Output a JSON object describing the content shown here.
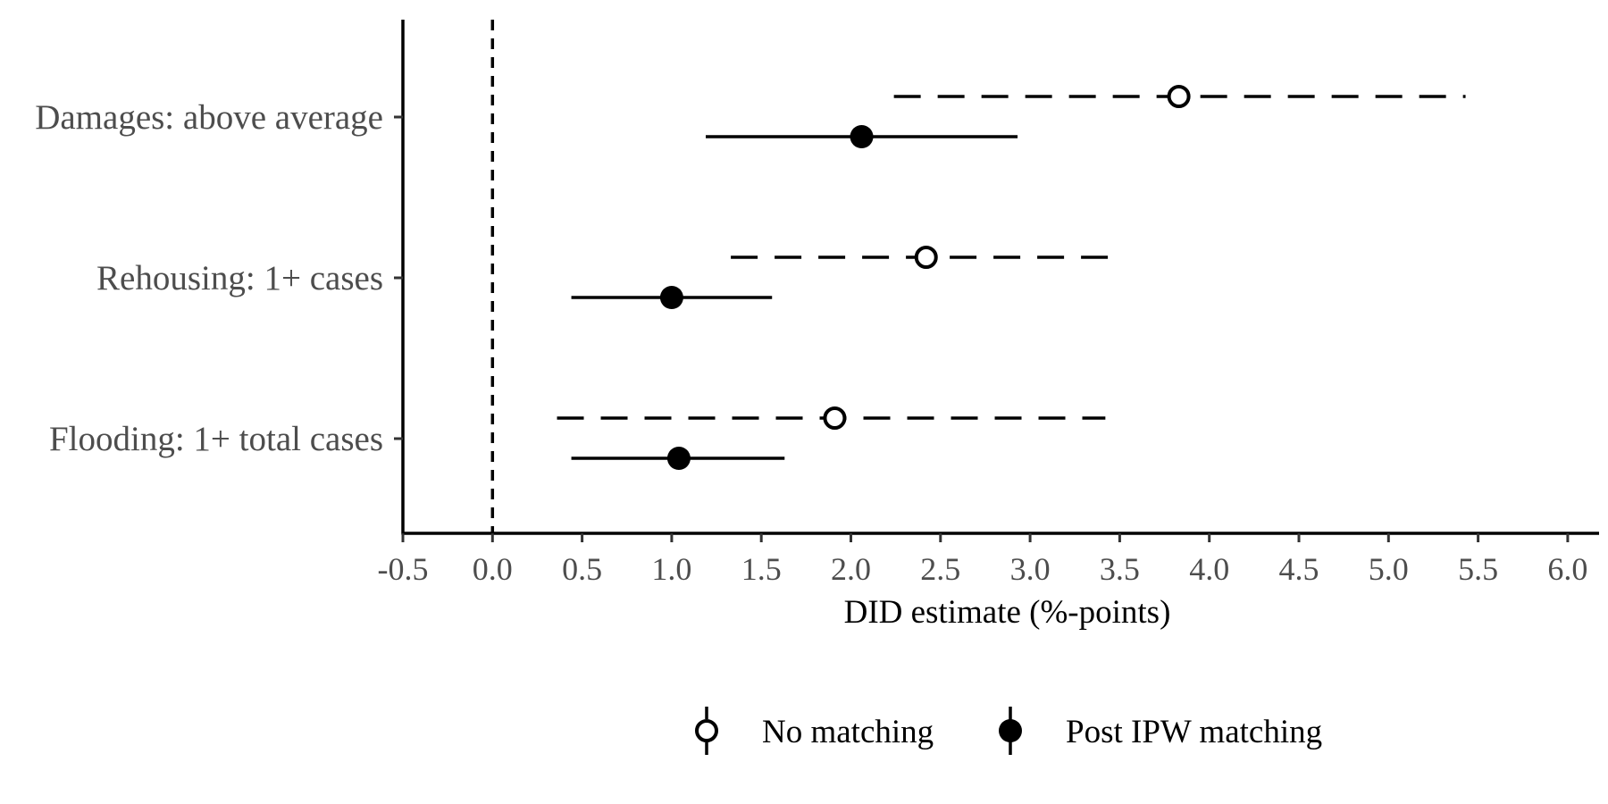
{
  "chart_data": {
    "type": "scatter",
    "subtype": "coefficient plot with confidence intervals",
    "title": "",
    "xlabel": "DID estimate (%-points)",
    "ylabel": "",
    "xlim": [
      -0.5,
      6.0
    ],
    "x_ticks": [
      "-0.5",
      "0.0",
      "0.5",
      "1.0",
      "1.5",
      "2.0",
      "2.5",
      "3.0",
      "3.5",
      "4.0",
      "4.5",
      "5.0",
      "5.5",
      "6.0"
    ],
    "categories": [
      "Damages: above average",
      "Rehousing: 1+ cases",
      "Flooding: 1+ total cases"
    ],
    "reference_line": {
      "x": 0.0,
      "style": "dashed"
    },
    "grid": false,
    "legend_position": "bottom",
    "series": [
      {
        "name": "No matching",
        "marker": "hollow-circle",
        "line_style": "dashed",
        "color": "#000000",
        "estimates": [
          3.83,
          2.42,
          1.91
        ],
        "ci_low": [
          2.24,
          1.33,
          0.36
        ],
        "ci_high": [
          5.43,
          3.5,
          3.42
        ]
      },
      {
        "name": "Post IPW matching",
        "marker": "filled-circle",
        "line_style": "solid",
        "color": "#000000",
        "estimates": [
          2.06,
          1.0,
          1.04
        ],
        "ci_low": [
          1.19,
          0.44,
          0.44
        ],
        "ci_high": [
          2.93,
          1.56,
          1.63
        ]
      }
    ]
  }
}
